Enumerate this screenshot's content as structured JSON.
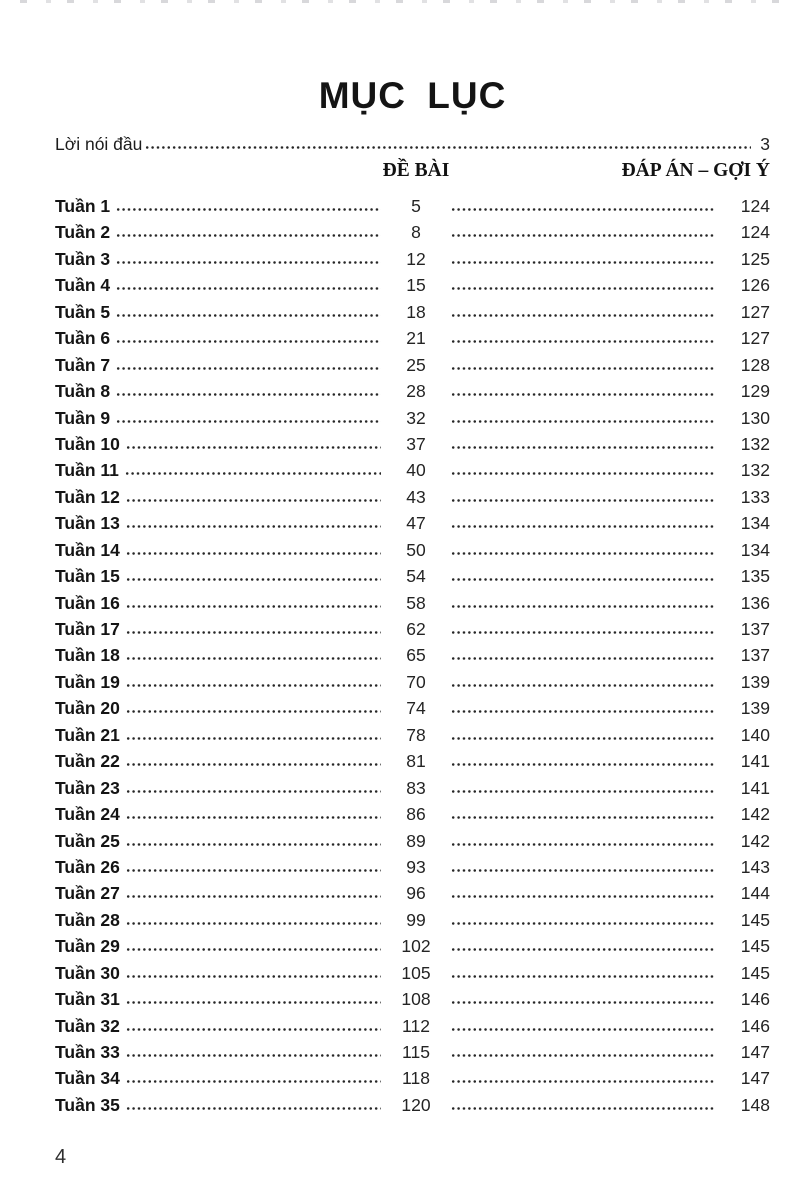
{
  "document": {
    "title": "MỤC LỤC",
    "footer_page_number": "4"
  },
  "preface": {
    "label": "Lời nói đầu",
    "page": "3"
  },
  "columns": {
    "exercises_header": "ĐỀ BÀI",
    "answers_header": "ĐÁP ÁN – GỢI Ý"
  },
  "toc_rows": [
    {
      "label": "Tuần 1",
      "exercise_page": "5",
      "answer_page": "124"
    },
    {
      "label": "Tuần 2",
      "exercise_page": "8",
      "answer_page": "124"
    },
    {
      "label": "Tuần 3",
      "exercise_page": "12",
      "answer_page": "125"
    },
    {
      "label": "Tuần 4",
      "exercise_page": "15",
      "answer_page": "126"
    },
    {
      "label": "Tuần 5",
      "exercise_page": "18",
      "answer_page": "127"
    },
    {
      "label": "Tuần 6",
      "exercise_page": "21",
      "answer_page": "127"
    },
    {
      "label": "Tuần 7",
      "exercise_page": "25",
      "answer_page": "128"
    },
    {
      "label": "Tuần 8",
      "exercise_page": "28",
      "answer_page": "129"
    },
    {
      "label": "Tuần 9",
      "exercise_page": "32",
      "answer_page": "130"
    },
    {
      "label": "Tuần 10",
      "exercise_page": "37",
      "answer_page": "132"
    },
    {
      "label": "Tuần 11",
      "exercise_page": "40",
      "answer_page": "132"
    },
    {
      "label": "Tuần 12",
      "exercise_page": "43",
      "answer_page": "133"
    },
    {
      "label": "Tuần 13",
      "exercise_page": "47",
      "answer_page": "134"
    },
    {
      "label": "Tuần 14",
      "exercise_page": "50",
      "answer_page": "134"
    },
    {
      "label": "Tuần 15",
      "exercise_page": "54",
      "answer_page": "135"
    },
    {
      "label": "Tuần 16",
      "exercise_page": "58",
      "answer_page": "136"
    },
    {
      "label": "Tuần 17",
      "exercise_page": "62",
      "answer_page": "137"
    },
    {
      "label": "Tuần 18",
      "exercise_page": "65",
      "answer_page": "137"
    },
    {
      "label": "Tuần 19",
      "exercise_page": "70",
      "answer_page": "139"
    },
    {
      "label": "Tuần 20",
      "exercise_page": "74",
      "answer_page": "139"
    },
    {
      "label": "Tuần 21",
      "exercise_page": "78",
      "answer_page": "140"
    },
    {
      "label": "Tuần 22",
      "exercise_page": "81",
      "answer_page": "141"
    },
    {
      "label": "Tuần 23",
      "exercise_page": "83",
      "answer_page": "141"
    },
    {
      "label": "Tuần 24",
      "exercise_page": "86",
      "answer_page": "142"
    },
    {
      "label": "Tuần 25",
      "exercise_page": "89",
      "answer_page": "142"
    },
    {
      "label": "Tuần 26",
      "exercise_page": "93",
      "answer_page": "143"
    },
    {
      "label": "Tuần 27",
      "exercise_page": "96",
      "answer_page": "144"
    },
    {
      "label": "Tuần 28",
      "exercise_page": "99",
      "answer_page": "145"
    },
    {
      "label": "Tuần 29",
      "exercise_page": "102",
      "answer_page": "145"
    },
    {
      "label": "Tuần 30",
      "exercise_page": "105",
      "answer_page": "145"
    },
    {
      "label": "Tuần 31",
      "exercise_page": "108",
      "answer_page": "146"
    },
    {
      "label": "Tuần 32",
      "exercise_page": "112",
      "answer_page": "146"
    },
    {
      "label": "Tuần 33",
      "exercise_page": "115",
      "answer_page": "147"
    },
    {
      "label": "Tuần 34",
      "exercise_page": "118",
      "answer_page": "147"
    },
    {
      "label": "Tuần 35",
      "exercise_page": "120",
      "answer_page": "148"
    }
  ]
}
